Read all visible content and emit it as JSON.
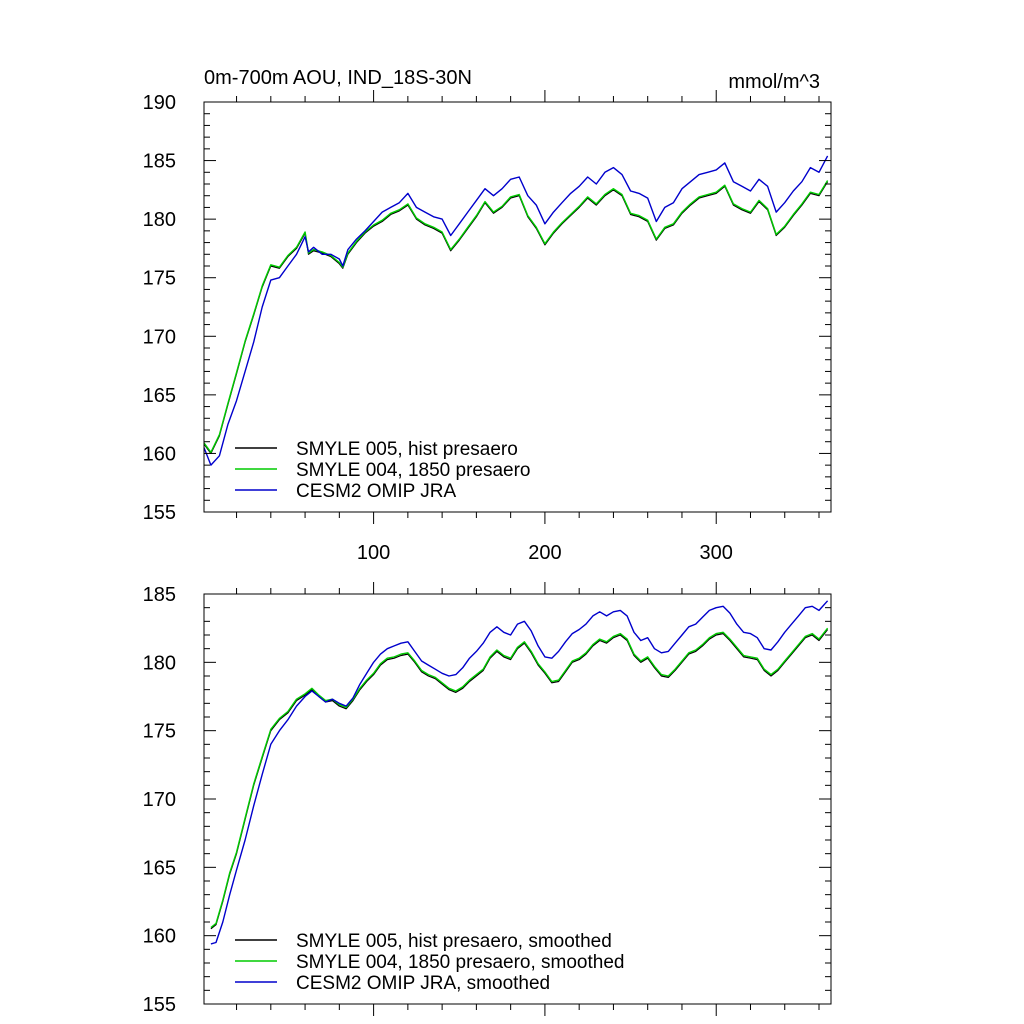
{
  "figure": {
    "title_left": "0m-700m AOU, IND_18S-30N",
    "title_right": "mmol/m^3"
  },
  "chart_data": [
    {
      "type": "line",
      "title": "0m-700m AOU, IND_18S-30N",
      "units": "mmol/m^3",
      "xlim": [
        1,
        367
      ],
      "ylim": [
        155,
        190
      ],
      "y_ticks": [
        155,
        160,
        165,
        170,
        175,
        180,
        185,
        190
      ],
      "x_ticks": [
        100,
        200,
        300
      ],
      "x_tick_labels_shown": true,
      "legend_position": "lower-left",
      "series": [
        {
          "name": "SMYLE 005, hist presaero",
          "color": "#000000",
          "x": [
            1,
            5,
            10,
            15,
            20,
            25,
            30,
            35,
            40,
            45,
            50,
            55,
            60,
            62,
            65,
            70,
            75,
            80,
            82,
            85,
            90,
            95,
            100,
            105,
            110,
            115,
            120,
            125,
            130,
            135,
            140,
            145,
            150,
            155,
            160,
            165,
            170,
            175,
            180,
            185,
            190,
            195,
            200,
            205,
            210,
            215,
            220,
            225,
            230,
            235,
            240,
            245,
            250,
            255,
            260,
            265,
            270,
            275,
            280,
            285,
            290,
            295,
            300,
            305,
            310,
            315,
            320,
            325,
            330,
            335,
            340,
            345,
            350,
            355,
            360,
            365
          ],
          "values": [
            160.8,
            160.0,
            161.5,
            164.2,
            166.8,
            169.5,
            171.8,
            174.2,
            176.0,
            175.8,
            176.8,
            177.5,
            178.8,
            177.0,
            177.3,
            177.1,
            176.8,
            176.2,
            175.8,
            177.0,
            178.0,
            178.8,
            179.4,
            179.8,
            180.4,
            180.7,
            181.2,
            180.0,
            179.5,
            179.2,
            178.8,
            177.3,
            178.2,
            179.2,
            180.2,
            181.4,
            180.5,
            181.0,
            181.8,
            182.0,
            180.2,
            179.2,
            177.8,
            178.8,
            179.6,
            180.3,
            181.0,
            181.8,
            181.2,
            182.0,
            182.5,
            182.0,
            180.4,
            180.2,
            179.8,
            178.2,
            179.2,
            179.5,
            180.5,
            181.2,
            181.8,
            182.0,
            182.2,
            182.8,
            181.2,
            180.8,
            180.5,
            181.5,
            180.8,
            178.6,
            179.3,
            180.3,
            181.2,
            182.2,
            182.0,
            183.2
          ]
        },
        {
          "name": "SMYLE 004, 1850 presaero",
          "color": "#00cc00",
          "x": [
            1,
            5,
            10,
            15,
            20,
            25,
            30,
            35,
            40,
            45,
            50,
            55,
            60,
            62,
            65,
            70,
            75,
            80,
            82,
            85,
            90,
            95,
            100,
            105,
            110,
            115,
            120,
            125,
            130,
            135,
            140,
            145,
            150,
            155,
            160,
            165,
            170,
            175,
            180,
            185,
            190,
            195,
            200,
            205,
            210,
            215,
            220,
            225,
            230,
            235,
            240,
            245,
            250,
            255,
            260,
            265,
            270,
            275,
            280,
            285,
            290,
            295,
            300,
            305,
            310,
            315,
            320,
            325,
            330,
            335,
            340,
            345,
            350,
            355,
            360,
            365
          ],
          "values": [
            160.9,
            160.1,
            161.6,
            164.3,
            166.9,
            169.6,
            171.9,
            174.3,
            176.1,
            175.9,
            176.9,
            177.6,
            178.9,
            177.1,
            177.4,
            177.2,
            176.9,
            176.3,
            175.9,
            177.1,
            178.1,
            178.9,
            179.5,
            179.9,
            180.5,
            180.8,
            181.3,
            180.1,
            179.6,
            179.3,
            178.9,
            177.4,
            178.3,
            179.3,
            180.3,
            181.5,
            180.6,
            181.1,
            181.9,
            182.1,
            180.3,
            179.3,
            177.9,
            178.9,
            179.7,
            180.4,
            181.1,
            181.9,
            181.3,
            182.1,
            182.6,
            182.1,
            180.5,
            180.3,
            179.9,
            178.3,
            179.3,
            179.6,
            180.6,
            181.3,
            181.9,
            182.1,
            182.3,
            182.9,
            181.3,
            180.9,
            180.6,
            181.6,
            180.9,
            178.7,
            179.4,
            180.4,
            181.3,
            182.3,
            182.1,
            183.3
          ]
        },
        {
          "name": "CESM2 OMIP JRA",
          "color": "#0000cc",
          "x": [
            1,
            5,
            10,
            15,
            20,
            25,
            30,
            35,
            40,
            45,
            50,
            55,
            60,
            62,
            65,
            70,
            75,
            80,
            82,
            85,
            90,
            95,
            100,
            105,
            110,
            115,
            120,
            125,
            130,
            135,
            140,
            145,
            150,
            155,
            160,
            165,
            170,
            175,
            180,
            185,
            190,
            195,
            200,
            205,
            210,
            215,
            220,
            225,
            230,
            235,
            240,
            245,
            250,
            255,
            260,
            265,
            270,
            275,
            280,
            285,
            290,
            295,
            300,
            305,
            310,
            315,
            320,
            325,
            330,
            335,
            340,
            345,
            350,
            355,
            360,
            365
          ],
          "values": [
            160.5,
            159.0,
            159.8,
            162.5,
            164.5,
            167.0,
            169.5,
            172.5,
            174.8,
            175.0,
            176.0,
            177.0,
            178.5,
            177.2,
            177.6,
            177.0,
            177.0,
            176.6,
            176.0,
            177.4,
            178.3,
            179.0,
            179.8,
            180.6,
            181.0,
            181.4,
            182.2,
            181.0,
            180.6,
            180.2,
            180.0,
            178.6,
            179.6,
            180.6,
            181.6,
            182.6,
            182.0,
            182.6,
            183.4,
            183.6,
            182.0,
            181.2,
            179.6,
            180.6,
            181.4,
            182.2,
            182.8,
            183.6,
            183.0,
            184.0,
            184.4,
            183.8,
            182.4,
            182.2,
            181.8,
            179.8,
            181.0,
            181.4,
            182.6,
            183.2,
            183.8,
            184.0,
            184.2,
            184.8,
            183.2,
            182.8,
            182.4,
            183.4,
            182.8,
            180.6,
            181.4,
            182.4,
            183.2,
            184.4,
            184.0,
            185.4
          ]
        }
      ]
    },
    {
      "type": "line",
      "title": "",
      "xlim": [
        1,
        367
      ],
      "ylim": [
        155,
        185
      ],
      "y_ticks": [
        155,
        160,
        165,
        170,
        175,
        180,
        185
      ],
      "x_ticks": [
        100,
        200,
        300
      ],
      "x_tick_labels_shown": false,
      "legend_position": "lower-left",
      "series": [
        {
          "name": "SMYLE 005, hist presaero, smoothed",
          "color": "#000000",
          "x": [
            5,
            8,
            12,
            16,
            20,
            25,
            30,
            35,
            40,
            45,
            50,
            55,
            60,
            64,
            68,
            72,
            76,
            80,
            84,
            88,
            92,
            96,
            100,
            104,
            108,
            112,
            116,
            120,
            124,
            128,
            132,
            136,
            140,
            144,
            148,
            152,
            156,
            160,
            164,
            168,
            172,
            176,
            180,
            184,
            188,
            192,
            196,
            200,
            204,
            208,
            212,
            216,
            220,
            224,
            228,
            232,
            236,
            240,
            244,
            248,
            252,
            256,
            260,
            264,
            268,
            272,
            276,
            280,
            284,
            288,
            292,
            296,
            300,
            304,
            308,
            312,
            316,
            320,
            324,
            328,
            332,
            336,
            340,
            344,
            348,
            352,
            356,
            360,
            365
          ],
          "values": [
            160.5,
            160.8,
            162.5,
            164.5,
            166.0,
            168.5,
            171.0,
            173.0,
            175.0,
            175.8,
            176.3,
            177.2,
            177.6,
            178.0,
            177.5,
            177.1,
            177.2,
            176.8,
            176.6,
            177.2,
            178.0,
            178.6,
            179.1,
            179.8,
            180.2,
            180.3,
            180.5,
            180.6,
            180.0,
            179.3,
            179.0,
            178.8,
            178.4,
            178.0,
            177.8,
            178.1,
            178.6,
            179.0,
            179.4,
            180.3,
            180.8,
            180.4,
            180.2,
            181.0,
            181.4,
            180.7,
            179.8,
            179.2,
            178.5,
            178.6,
            179.3,
            180.0,
            180.2,
            180.6,
            181.2,
            181.6,
            181.4,
            181.8,
            182.0,
            181.6,
            180.5,
            180.0,
            180.3,
            179.6,
            179.0,
            178.9,
            179.4,
            180.0,
            180.6,
            180.8,
            181.2,
            181.7,
            182.0,
            182.1,
            181.6,
            181.0,
            180.4,
            180.3,
            180.2,
            179.4,
            179.0,
            179.4,
            180.0,
            180.6,
            181.2,
            181.8,
            182.0,
            181.6,
            182.4
          ]
        },
        {
          "name": "SMYLE 004, 1850 presaero, smoothed",
          "color": "#00cc00",
          "x": [
            5,
            8,
            12,
            16,
            20,
            25,
            30,
            35,
            40,
            45,
            50,
            55,
            60,
            64,
            68,
            72,
            76,
            80,
            84,
            88,
            92,
            96,
            100,
            104,
            108,
            112,
            116,
            120,
            124,
            128,
            132,
            136,
            140,
            144,
            148,
            152,
            156,
            160,
            164,
            168,
            172,
            176,
            180,
            184,
            188,
            192,
            196,
            200,
            204,
            208,
            212,
            216,
            220,
            224,
            228,
            232,
            236,
            240,
            244,
            248,
            252,
            256,
            260,
            264,
            268,
            272,
            276,
            280,
            284,
            288,
            292,
            296,
            300,
            304,
            308,
            312,
            316,
            320,
            324,
            328,
            332,
            336,
            340,
            344,
            348,
            352,
            356,
            360,
            365
          ],
          "values": [
            160.6,
            160.9,
            162.6,
            164.6,
            166.1,
            168.6,
            171.1,
            173.1,
            175.1,
            175.9,
            176.4,
            177.3,
            177.7,
            178.1,
            177.6,
            177.2,
            177.3,
            176.9,
            176.7,
            177.3,
            178.1,
            178.7,
            179.2,
            179.9,
            180.3,
            180.4,
            180.6,
            180.7,
            180.1,
            179.4,
            179.1,
            178.9,
            178.5,
            178.1,
            177.9,
            178.2,
            178.7,
            179.1,
            179.5,
            180.4,
            180.9,
            180.5,
            180.3,
            181.1,
            181.5,
            180.8,
            179.9,
            179.3,
            178.6,
            178.7,
            179.4,
            180.1,
            180.3,
            180.7,
            181.3,
            181.7,
            181.5,
            181.9,
            182.1,
            181.7,
            180.6,
            180.1,
            180.4,
            179.7,
            179.1,
            179.0,
            179.5,
            180.1,
            180.7,
            180.9,
            181.3,
            181.8,
            182.1,
            182.2,
            181.7,
            181.1,
            180.5,
            180.4,
            180.3,
            179.5,
            179.1,
            179.5,
            180.1,
            180.7,
            181.3,
            181.9,
            182.1,
            181.7,
            182.5
          ]
        },
        {
          "name": "CESM2 OMIP JRA, smoothed",
          "color": "#0000cc",
          "x": [
            5,
            8,
            12,
            16,
            20,
            25,
            30,
            35,
            40,
            45,
            50,
            55,
            60,
            64,
            68,
            72,
            76,
            80,
            84,
            88,
            92,
            96,
            100,
            104,
            108,
            112,
            116,
            120,
            124,
            128,
            132,
            136,
            140,
            144,
            148,
            152,
            156,
            160,
            164,
            168,
            172,
            176,
            180,
            184,
            188,
            192,
            196,
            200,
            204,
            208,
            212,
            216,
            220,
            224,
            228,
            232,
            236,
            240,
            244,
            248,
            252,
            256,
            260,
            264,
            268,
            272,
            276,
            280,
            284,
            288,
            292,
            296,
            300,
            304,
            308,
            312,
            316,
            320,
            324,
            328,
            332,
            336,
            340,
            344,
            348,
            352,
            356,
            360,
            365
          ],
          "values": [
            159.4,
            159.5,
            161.0,
            163.0,
            164.8,
            167.0,
            169.5,
            171.8,
            174.0,
            175.0,
            175.8,
            176.8,
            177.5,
            177.9,
            177.5,
            177.1,
            177.3,
            177.0,
            176.8,
            177.4,
            178.4,
            179.2,
            180.0,
            180.6,
            181.0,
            181.2,
            181.4,
            181.5,
            180.8,
            180.1,
            179.8,
            179.5,
            179.2,
            179.0,
            179.1,
            179.6,
            180.3,
            180.8,
            181.4,
            182.2,
            182.6,
            182.2,
            182.0,
            182.8,
            183.0,
            182.3,
            181.2,
            180.4,
            180.3,
            180.8,
            181.5,
            182.1,
            182.4,
            182.8,
            183.4,
            183.7,
            183.4,
            183.7,
            183.8,
            183.4,
            182.2,
            181.6,
            181.8,
            181.0,
            180.7,
            180.8,
            181.4,
            182.0,
            182.6,
            182.8,
            183.3,
            183.8,
            184.0,
            184.1,
            183.6,
            182.8,
            182.2,
            182.1,
            181.8,
            181.0,
            180.9,
            181.5,
            182.2,
            182.8,
            183.4,
            184.0,
            184.1,
            183.8,
            184.5
          ]
        }
      ]
    }
  ]
}
